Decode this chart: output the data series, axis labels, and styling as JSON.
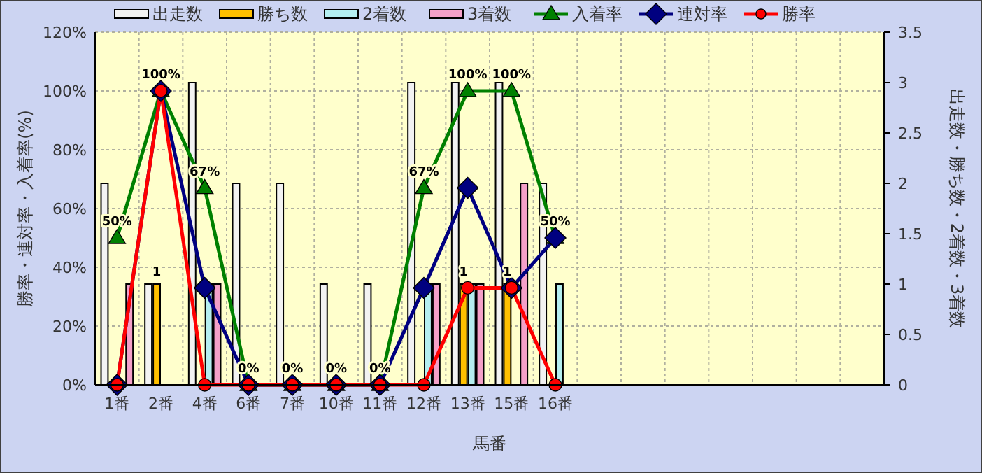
{
  "chart_data": {
    "type": "bar",
    "xlabel": "馬番",
    "ylabel": "勝率・連対率・入着率(%)",
    "y2label": "出走数・勝ち数・2着数・3着数",
    "categories": [
      "1番",
      "2番",
      "4番",
      "6番",
      "7番",
      "10番",
      "11番",
      "12番",
      "13番",
      "15番",
      "16番",
      null,
      null,
      null,
      null,
      null,
      null,
      null
    ],
    "series": [
      {
        "name": "出走数",
        "type": "bar",
        "axis": "y2",
        "color": "#f2f2f2",
        "values": [
          2,
          1,
          3,
          2,
          2,
          1,
          1,
          3,
          3,
          3,
          2,
          null,
          null,
          null,
          null,
          null,
          null,
          null
        ]
      },
      {
        "name": "勝ち数",
        "type": "bar",
        "axis": "y2",
        "color": "#ffc000",
        "values": [
          0,
          1,
          0,
          0,
          0,
          0,
          0,
          0,
          1,
          1,
          0,
          null,
          null,
          null,
          null,
          null,
          null,
          null
        ],
        "value_labels": [
          null,
          "1",
          null,
          null,
          null,
          null,
          null,
          null,
          "1",
          "1",
          null,
          null,
          null,
          null,
          null,
          null,
          null,
          null
        ]
      },
      {
        "name": "2着数",
        "type": "bar",
        "axis": "y2",
        "color": "#b4eef0",
        "values": [
          0,
          0,
          1,
          0,
          0,
          0,
          0,
          1,
          1,
          0,
          1,
          null,
          null,
          null,
          null,
          null,
          null,
          null
        ]
      },
      {
        "name": "3着数",
        "type": "bar",
        "axis": "y2",
        "color": "#f4a0c8",
        "values": [
          1,
          0,
          1,
          0,
          0,
          0,
          0,
          1,
          1,
          2,
          0,
          null,
          null,
          null,
          null,
          null,
          null,
          null
        ]
      },
      {
        "name": "入着率",
        "type": "line",
        "axis": "y",
        "color": "#008000",
        "marker": "triangle",
        "line_style": "solid",
        "values": [
          50,
          100,
          67,
          0,
          0,
          0,
          0,
          67,
          100,
          100,
          50,
          null,
          null,
          null,
          null,
          null,
          null,
          null
        ],
        "value_labels": [
          "50%",
          "100%",
          "67%",
          "0%",
          "0%",
          "0%",
          "0%",
          "67%",
          "100%",
          "100%",
          "50%",
          null,
          null,
          null,
          null,
          null,
          null,
          null
        ]
      },
      {
        "name": "連対率",
        "type": "line",
        "axis": "y",
        "color": "#000080",
        "marker": "diamond",
        "line_style": "solid",
        "values": [
          0,
          100,
          33,
          0,
          0,
          0,
          0,
          33,
          67,
          33,
          50,
          null,
          null,
          null,
          null,
          null,
          null,
          null
        ]
      },
      {
        "name": "勝率",
        "type": "line",
        "axis": "y",
        "color": "#ff0000",
        "marker": "circle",
        "line_style": "solid",
        "values": [
          0,
          100,
          0,
          0,
          0,
          0,
          0,
          0,
          33,
          33,
          0,
          null,
          null,
          null,
          null,
          null,
          null,
          null
        ]
      }
    ],
    "ylim": [
      0,
      120
    ],
    "yticks": [
      {
        "value": 0,
        "label": "0%"
      },
      {
        "value": 20,
        "label": "20%"
      },
      {
        "value": 40,
        "label": "40%"
      },
      {
        "value": 60,
        "label": "60%"
      },
      {
        "value": 80,
        "label": "80%"
      },
      {
        "value": 100,
        "label": "100%"
      },
      {
        "value": 120,
        "label": "120%"
      }
    ],
    "y2lim": [
      0,
      3.5
    ],
    "y2ticks": [
      0,
      0.5,
      1,
      1.5,
      2,
      2.5,
      3,
      3.5
    ],
    "grid": true,
    "legend": "top"
  }
}
